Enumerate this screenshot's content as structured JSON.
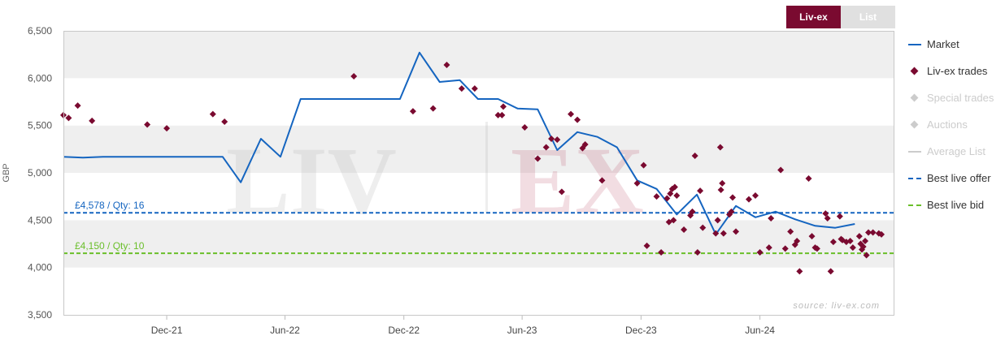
{
  "tabs": [
    {
      "label": "Liv-ex",
      "active": true
    },
    {
      "label": "List",
      "active": false
    }
  ],
  "legend": [
    {
      "label": "Market",
      "type": "line",
      "color": "#1565c0",
      "enabled": true
    },
    {
      "label": "Liv-ex trades",
      "type": "diamond",
      "color": "#7a0a30",
      "enabled": true
    },
    {
      "label": "Special trades",
      "type": "diamond",
      "color": "#cccccc",
      "enabled": false
    },
    {
      "label": "Auctions",
      "type": "diamond",
      "color": "#cccccc",
      "enabled": false
    },
    {
      "label": "Average List",
      "type": "line",
      "color": "#cccccc",
      "enabled": false
    },
    {
      "label": "Best live offer",
      "type": "dash",
      "color": "#1565c0",
      "enabled": true
    },
    {
      "label": "Best live bid",
      "type": "dash",
      "color": "#6abf2a",
      "enabled": true
    }
  ],
  "watermark": {
    "left": "LIV",
    "right": "EX"
  },
  "source": "source: liv-ex.com",
  "chart_data": {
    "type": "line",
    "ylabel": "GBP",
    "ylim": [
      3500,
      6500
    ],
    "yticks": [
      3500,
      4000,
      4500,
      5000,
      5500,
      6000,
      6500
    ],
    "ytick_labels": [
      "3,500",
      "4,000",
      "4,500",
      "5,000",
      "5,500",
      "6,000",
      "6,500"
    ],
    "xlim": [
      "2021-06-25",
      "2024-12-25"
    ],
    "xticks": [
      {
        "date": "2021-12-01",
        "label": "Dec-21"
      },
      {
        "date": "2022-06-01",
        "label": "Jun-22"
      },
      {
        "date": "2022-12-01",
        "label": "Dec-22"
      },
      {
        "date": "2023-06-01",
        "label": "Jun-23"
      },
      {
        "date": "2023-12-01",
        "label": "Dec-23"
      },
      {
        "date": "2024-06-01",
        "label": "Jun-24"
      }
    ],
    "grid": "alternating horizontal bands",
    "legend_position": "right",
    "series": [
      {
        "name": "Market",
        "type": "line",
        "color": "#1565c0",
        "points": [
          [
            "2021-06-25",
            5170
          ],
          [
            "2021-07-25",
            5160
          ],
          [
            "2021-08-25",
            5170
          ],
          [
            "2021-09-25",
            5170
          ],
          [
            "2021-10-25",
            5170
          ],
          [
            "2021-11-25",
            5170
          ],
          [
            "2021-12-25",
            5170
          ],
          [
            "2022-01-25",
            5170
          ],
          [
            "2022-02-25",
            5170
          ],
          [
            "2022-03-25",
            4900
          ],
          [
            "2022-04-25",
            5360
          ],
          [
            "2022-05-25",
            5170
          ],
          [
            "2022-06-25",
            5780
          ],
          [
            "2022-07-25",
            5780
          ],
          [
            "2022-08-25",
            5780
          ],
          [
            "2022-09-25",
            5780
          ],
          [
            "2022-10-25",
            5780
          ],
          [
            "2022-11-25",
            5780
          ],
          [
            "2022-12-25",
            6270
          ],
          [
            "2023-01-25",
            5960
          ],
          [
            "2023-02-25",
            5980
          ],
          [
            "2023-03-25",
            5780
          ],
          [
            "2023-04-25",
            5780
          ],
          [
            "2023-05-25",
            5680
          ],
          [
            "2023-06-25",
            5670
          ],
          [
            "2023-07-25",
            5240
          ],
          [
            "2023-08-25",
            5430
          ],
          [
            "2023-09-25",
            5380
          ],
          [
            "2023-10-25",
            5270
          ],
          [
            "2023-11-25",
            4920
          ],
          [
            "2023-12-25",
            4830
          ],
          [
            "2024-01-25",
            4560
          ],
          [
            "2024-02-25",
            4770
          ],
          [
            "2024-03-25",
            4350
          ],
          [
            "2024-04-25",
            4650
          ],
          [
            "2024-05-25",
            4530
          ],
          [
            "2024-06-25",
            4590
          ],
          [
            "2024-07-25",
            4510
          ],
          [
            "2024-08-25",
            4440
          ],
          [
            "2024-09-25",
            4420
          ],
          [
            "2024-10-25",
            4460
          ]
        ]
      },
      {
        "name": "Liv-ex trades",
        "type": "scatter",
        "color": "#7a0a30",
        "points": [
          [
            "2021-06-25",
            5610
          ],
          [
            "2021-07-03",
            5580
          ],
          [
            "2021-07-17",
            5710
          ],
          [
            "2021-08-08",
            5550
          ],
          [
            "2021-11-01",
            5510
          ],
          [
            "2021-12-01",
            5470
          ],
          [
            "2022-02-10",
            5620
          ],
          [
            "2022-02-28",
            5540
          ],
          [
            "2022-09-15",
            6020
          ],
          [
            "2022-12-15",
            5650
          ],
          [
            "2023-01-15",
            5680
          ],
          [
            "2023-02-05",
            6140
          ],
          [
            "2023-02-28",
            5890
          ],
          [
            "2023-03-20",
            5890
          ],
          [
            "2023-04-25",
            5610
          ],
          [
            "2023-05-01",
            5610
          ],
          [
            "2023-05-03",
            5700
          ],
          [
            "2023-06-05",
            5480
          ],
          [
            "2023-06-25",
            5150
          ],
          [
            "2023-07-08",
            5270
          ],
          [
            "2023-07-16",
            5360
          ],
          [
            "2023-07-25",
            5350
          ],
          [
            "2023-08-01",
            4800
          ],
          [
            "2023-08-15",
            5620
          ],
          [
            "2023-08-25",
            5560
          ],
          [
            "2023-09-02",
            5260
          ],
          [
            "2023-09-06",
            5300
          ],
          [
            "2023-10-02",
            4920
          ],
          [
            "2023-11-25",
            4890
          ],
          [
            "2023-12-05",
            5080
          ],
          [
            "2023-12-10",
            4230
          ],
          [
            "2023-12-25",
            4750
          ],
          [
            "2024-01-01",
            4160
          ],
          [
            "2024-01-10",
            4730
          ],
          [
            "2024-01-13",
            4480
          ],
          [
            "2024-01-15",
            4780
          ],
          [
            "2024-01-18",
            4830
          ],
          [
            "2024-01-20",
            4500
          ],
          [
            "2024-01-22",
            4850
          ],
          [
            "2024-01-25",
            4760
          ],
          [
            "2024-02-05",
            4400
          ],
          [
            "2024-02-15",
            4550
          ],
          [
            "2024-02-18",
            4590
          ],
          [
            "2024-02-22",
            5180
          ],
          [
            "2024-02-26",
            4160
          ],
          [
            "2024-03-01",
            4810
          ],
          [
            "2024-03-05",
            4420
          ],
          [
            "2024-03-25",
            4360
          ],
          [
            "2024-03-28",
            4500
          ],
          [
            "2024-04-01",
            5270
          ],
          [
            "2024-04-02",
            4820
          ],
          [
            "2024-04-04",
            4890
          ],
          [
            "2024-04-06",
            4360
          ],
          [
            "2024-04-15",
            4560
          ],
          [
            "2024-04-18",
            4590
          ],
          [
            "2024-04-20",
            4740
          ],
          [
            "2024-04-25",
            4380
          ],
          [
            "2024-05-15",
            4720
          ],
          [
            "2024-05-25",
            4760
          ],
          [
            "2024-06-01",
            4160
          ],
          [
            "2024-06-15",
            4210
          ],
          [
            "2024-06-18",
            4520
          ],
          [
            "2024-07-03",
            5030
          ],
          [
            "2024-07-10",
            4200
          ],
          [
            "2024-07-18",
            4380
          ],
          [
            "2024-07-25",
            4240
          ],
          [
            "2024-07-28",
            4280
          ],
          [
            "2024-08-01",
            3960
          ],
          [
            "2024-08-15",
            4940
          ],
          [
            "2024-08-20",
            4330
          ],
          [
            "2024-08-25",
            4210
          ],
          [
            "2024-08-28",
            4200
          ],
          [
            "2024-09-10",
            4570
          ],
          [
            "2024-09-13",
            4520
          ],
          [
            "2024-09-18",
            3960
          ],
          [
            "2024-09-22",
            4270
          ],
          [
            "2024-10-02",
            4540
          ],
          [
            "2024-10-04",
            4300
          ],
          [
            "2024-10-06",
            4290
          ],
          [
            "2024-10-12",
            4270
          ],
          [
            "2024-10-18",
            4280
          ],
          [
            "2024-10-22",
            4210
          ],
          [
            "2024-11-01",
            4330
          ],
          [
            "2024-11-03",
            4250
          ],
          [
            "2024-11-05",
            4190
          ],
          [
            "2024-11-07",
            4220
          ],
          [
            "2024-11-10",
            4280
          ],
          [
            "2024-11-12",
            4130
          ],
          [
            "2024-11-15",
            4370
          ],
          [
            "2024-11-22",
            4370
          ],
          [
            "2024-12-01",
            4360
          ],
          [
            "2024-12-05",
            4350
          ]
        ]
      }
    ],
    "reference_lines": [
      {
        "name": "Best live offer",
        "value": 4578,
        "label": "£4,578 / Qty: 16",
        "color": "#1565c0",
        "style": "dashed"
      },
      {
        "name": "Best live bid",
        "value": 4150,
        "label": "£4,150 / Qty: 10",
        "color": "#6abf2a",
        "style": "dashed"
      }
    ]
  }
}
